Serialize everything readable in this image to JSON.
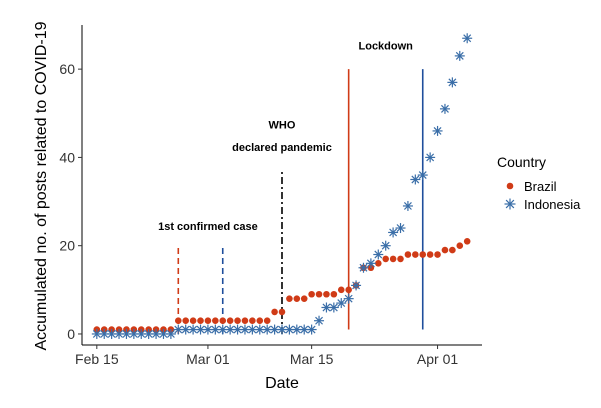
{
  "chart_data": {
    "type": "scatter",
    "xlabel": "Date",
    "ylabel": "Accumulated no. of posts related to COVID-19",
    "x_ticks": [
      {
        "date": "2020-02-15",
        "label": "Feb 15"
      },
      {
        "date": "2020-03-01",
        "label": "Mar 01"
      },
      {
        "date": "2020-03-15",
        "label": "Mar 15"
      },
      {
        "date": "2020-04-01",
        "label": "Apr 01"
      }
    ],
    "y_ticks": [
      0,
      20,
      40,
      60
    ],
    "xlim": [
      "2020-02-13",
      "2020-04-07"
    ],
    "ylim": [
      -2.5,
      70
    ],
    "grid": false,
    "legend": {
      "title": "Country",
      "placement": "right",
      "entries": [
        {
          "name": "Brazil",
          "marker": "circle",
          "color": "#d03b17"
        },
        {
          "name": "Indonesia",
          "marker": "asterisk",
          "color": "#3a6ea8"
        }
      ]
    },
    "series": [
      {
        "name": "Brazil",
        "marker": "circle",
        "color": "#d03b17",
        "dates": [
          "2020-02-15",
          "2020-02-16",
          "2020-02-17",
          "2020-02-18",
          "2020-02-19",
          "2020-02-20",
          "2020-02-21",
          "2020-02-22",
          "2020-02-23",
          "2020-02-24",
          "2020-02-25",
          "2020-02-26",
          "2020-02-27",
          "2020-02-28",
          "2020-02-29",
          "2020-03-01",
          "2020-03-02",
          "2020-03-03",
          "2020-03-04",
          "2020-03-05",
          "2020-03-06",
          "2020-03-07",
          "2020-03-08",
          "2020-03-09",
          "2020-03-10",
          "2020-03-11",
          "2020-03-12",
          "2020-03-13",
          "2020-03-14",
          "2020-03-15",
          "2020-03-16",
          "2020-03-17",
          "2020-03-18",
          "2020-03-19",
          "2020-03-20",
          "2020-03-21",
          "2020-03-22",
          "2020-03-23",
          "2020-03-24",
          "2020-03-25",
          "2020-03-26",
          "2020-03-27",
          "2020-03-28",
          "2020-03-29",
          "2020-03-30",
          "2020-03-31",
          "2020-04-01",
          "2020-04-02",
          "2020-04-03",
          "2020-04-04",
          "2020-04-05"
        ],
        "values": [
          1,
          1,
          1,
          1,
          1,
          1,
          1,
          1,
          1,
          1,
          1,
          3,
          3,
          3,
          3,
          3,
          3,
          3,
          3,
          3,
          3,
          3,
          3,
          3,
          5,
          5,
          8,
          8,
          8,
          9,
          9,
          9,
          9,
          10,
          10,
          11,
          15,
          15,
          16,
          17,
          17,
          17,
          18,
          18,
          18,
          18,
          18,
          19,
          19,
          20,
          21
        ]
      },
      {
        "name": "Indonesia",
        "marker": "asterisk",
        "color": "#3a6ea8",
        "dates": [
          "2020-02-15",
          "2020-02-16",
          "2020-02-17",
          "2020-02-18",
          "2020-02-19",
          "2020-02-20",
          "2020-02-21",
          "2020-02-22",
          "2020-02-23",
          "2020-02-24",
          "2020-02-25",
          "2020-02-26",
          "2020-02-27",
          "2020-02-28",
          "2020-02-29",
          "2020-03-01",
          "2020-03-02",
          "2020-03-03",
          "2020-03-04",
          "2020-03-05",
          "2020-03-06",
          "2020-03-07",
          "2020-03-08",
          "2020-03-09",
          "2020-03-10",
          "2020-03-11",
          "2020-03-12",
          "2020-03-13",
          "2020-03-14",
          "2020-03-15",
          "2020-03-16",
          "2020-03-17",
          "2020-03-18",
          "2020-03-19",
          "2020-03-20",
          "2020-03-21",
          "2020-03-22",
          "2020-03-23",
          "2020-03-24",
          "2020-03-25",
          "2020-03-26",
          "2020-03-27",
          "2020-03-28",
          "2020-03-29",
          "2020-03-30",
          "2020-03-31",
          "2020-04-01",
          "2020-04-02",
          "2020-04-03",
          "2020-04-04",
          "2020-04-05"
        ],
        "values": [
          0,
          0,
          0,
          0,
          0,
          0,
          0,
          0,
          0,
          0,
          0,
          1,
          1,
          1,
          1,
          1,
          1,
          1,
          1,
          1,
          1,
          1,
          1,
          1,
          1,
          1,
          1,
          1,
          1,
          1,
          3,
          6,
          6,
          7,
          8,
          11,
          15,
          16,
          18,
          20,
          23,
          24,
          29,
          35,
          36,
          40,
          46,
          51,
          57,
          63,
          67
        ]
      }
    ],
    "vlines": [
      {
        "date": "2020-02-26",
        "color": "#d03b17",
        "style": "dashed",
        "ymin": 0,
        "ymax": 20
      },
      {
        "date": "2020-03-03",
        "color": "#1f4e9c",
        "style": "dashed",
        "ymin": 0,
        "ymax": 20
      },
      {
        "date": "2020-03-11",
        "color": "#000000",
        "style": "dashdot",
        "ymin": 0,
        "ymax": 37
      },
      {
        "date": "2020-03-20",
        "color": "#d03b17",
        "style": "solid",
        "ymin": 1,
        "ymax": 60
      },
      {
        "date": "2020-03-30",
        "color": "#1f4e9c",
        "style": "solid",
        "ymin": 1,
        "ymax": 60
      }
    ],
    "annotations": [
      {
        "text": "1st confirmed case",
        "date": "2020-03-01",
        "y": 23.5
      },
      {
        "text": "WHO",
        "date": "2020-03-11",
        "y": 46.5
      },
      {
        "text": "declared pandemic",
        "date": "2020-03-11",
        "y": 41.5
      },
      {
        "text": "Lockdown",
        "date": "2020-03-25",
        "y": 64.5
      }
    ]
  }
}
